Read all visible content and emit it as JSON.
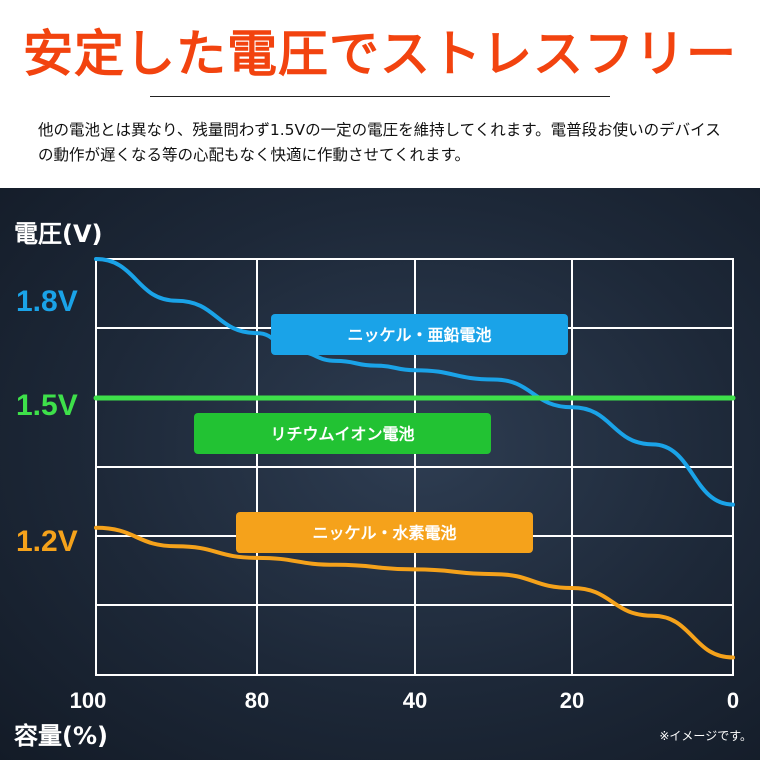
{
  "header": {
    "title": "安定した電圧でストレスフリー",
    "description": "他の電池とは異なり、残量問わず1.5Vの一定の電圧を維持してくれます。電普段お使いのデバイスの動作が遅くなる等の心配もなく快適に作動させてくれます。"
  },
  "chart_data": {
    "type": "line",
    "ylabel": "電圧(V)",
    "xlabel": "容量(%)",
    "x_ticks": [
      "100",
      "80",
      "40",
      "20",
      "0"
    ],
    "y_ticks": [
      "1.8V",
      "1.5V",
      "1.2V"
    ],
    "grid": true,
    "series": [
      {
        "name": "ニッケル・亜鉛電池",
        "color": "#1aa3e8",
        "points": [
          [
            100,
            1.8
          ],
          [
            90,
            1.71
          ],
          [
            80,
            1.64
          ],
          [
            70,
            1.6
          ],
          [
            60,
            1.58
          ],
          [
            50,
            1.57
          ],
          [
            40,
            1.56
          ],
          [
            30,
            1.54
          ],
          [
            20,
            1.48
          ],
          [
            10,
            1.4
          ],
          [
            0,
            1.27
          ]
        ]
      },
      {
        "name": "リチウムイオン電池",
        "color": "#3ee04a",
        "points": [
          [
            100,
            1.5
          ],
          [
            0,
            1.5
          ]
        ]
      },
      {
        "name": "ニッケル・水素電池",
        "color": "#f5a21b",
        "points": [
          [
            100,
            1.22
          ],
          [
            90,
            1.18
          ],
          [
            80,
            1.155
          ],
          [
            60,
            1.14
          ],
          [
            40,
            1.13
          ],
          [
            30,
            1.12
          ],
          [
            20,
            1.09
          ],
          [
            10,
            1.03
          ],
          [
            0,
            0.94
          ]
        ]
      }
    ],
    "legend_boxes": [
      {
        "label": "ニッケル・亜鉛電池",
        "color": "#1aa3e8"
      },
      {
        "label": "リチウムイオン電池",
        "color": "#22c233"
      },
      {
        "label": "ニッケル・水素電池",
        "color": "#f5a21b"
      }
    ]
  },
  "note": "※イメージです。"
}
